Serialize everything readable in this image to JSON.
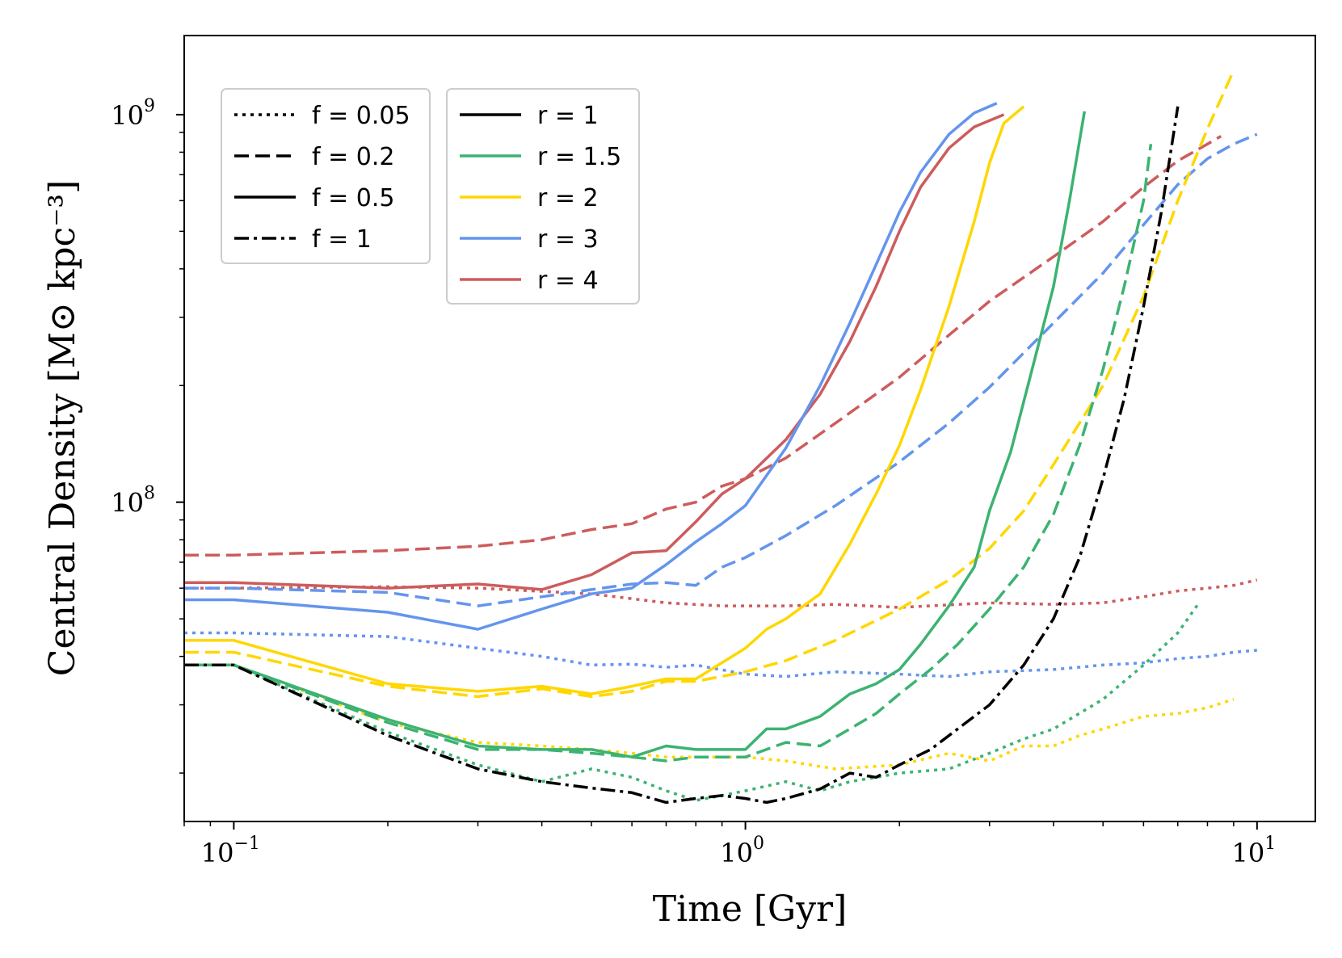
{
  "chart_data": {
    "type": "line",
    "title": "",
    "xlabel": "Time [Gyr]",
    "ylabel": "Central Density [M⊙ kpc⁻³]",
    "xscale": "log",
    "yscale": "log",
    "xlim": [
      0.08,
      13
    ],
    "ylim": [
      15000000.0,
      1600000000.0
    ],
    "xticks": [
      {
        "value": 0.1,
        "mant": "10",
        "exp": "−1"
      },
      {
        "value": 1,
        "mant": "10",
        "exp": "0"
      },
      {
        "value": 10,
        "mant": "10",
        "exp": "1"
      }
    ],
    "yticks": [
      {
        "value": 100000000.0,
        "mant": "10",
        "exp": "8"
      },
      {
        "value": 1000000000.0,
        "mant": "10",
        "exp": "9"
      }
    ],
    "legend_f": {
      "placement": "top-left",
      "entries": [
        {
          "label": "f = 0.05",
          "style": "dotted"
        },
        {
          "label": "f = 0.2",
          "style": "dashed"
        },
        {
          "label": "f = 0.5",
          "style": "solid"
        },
        {
          "label": "f = 1",
          "style": "dashdot"
        }
      ]
    },
    "legend_r": {
      "placement": "top-left",
      "entries": [
        {
          "label": "r = 1",
          "color": "#000000"
        },
        {
          "label": "r = 1.5",
          "color": "#3cb371"
        },
        {
          "label": "r = 2",
          "color": "#ffd700"
        },
        {
          "label": "r = 3",
          "color": "#6495ed"
        },
        {
          "label": "r = 4",
          "color": "#cd5c5c"
        }
      ]
    },
    "series": [
      {
        "name": "r=4 f=0.5",
        "color": "#cd5c5c",
        "style": "solid",
        "x": [
          0.08,
          0.1,
          0.2,
          0.3,
          0.4,
          0.5,
          0.6,
          0.7,
          0.8,
          0.9,
          1.0,
          1.2,
          1.4,
          1.6,
          1.8,
          2.0,
          2.2,
          2.5,
          2.8,
          3.2
        ],
        "y": [
          62000000.0,
          62000000.0,
          60000000.0,
          61500000.0,
          59500000.0,
          65000000.0,
          74000000.0,
          75000000.0,
          89000000.0,
          105000000.0,
          115000000.0,
          145000000.0,
          190000000.0,
          260000000.0,
          360000000.0,
          500000000.0,
          650000000.0,
          820000000.0,
          930000000.0,
          1000000000.0
        ]
      },
      {
        "name": "r=4 f=0.2",
        "color": "#cd5c5c",
        "style": "dashed",
        "x": [
          0.08,
          0.1,
          0.2,
          0.3,
          0.4,
          0.5,
          0.6,
          0.7,
          0.8,
          0.9,
          1.0,
          1.2,
          1.5,
          2.0,
          2.5,
          3.0,
          4.0,
          5.0,
          6.0,
          7.0,
          8.0,
          8.5
        ],
        "y": [
          73000000.0,
          73000000.0,
          75000000.0,
          77000000.0,
          80000000.0,
          85000000.0,
          88000000.0,
          96000000.0,
          100000000.0,
          110000000.0,
          115000000.0,
          130000000.0,
          160000000.0,
          210000000.0,
          270000000.0,
          330000000.0,
          430000000.0,
          530000000.0,
          650000000.0,
          760000000.0,
          840000000.0,
          880000000.0
        ]
      },
      {
        "name": "r=4 f=0.05",
        "color": "#cd5c5c",
        "style": "dotted",
        "x": [
          0.08,
          0.1,
          0.2,
          0.3,
          0.5,
          0.7,
          0.9,
          1.2,
          1.5,
          2.0,
          3.0,
          4.0,
          5.0,
          6.0,
          7.0,
          8.0,
          9.0,
          10.0
        ],
        "y": [
          60000000.0,
          60000000.0,
          60500000.0,
          60000000.0,
          58000000.0,
          55000000.0,
          54000000.0,
          54000000.0,
          54500000.0,
          53500000.0,
          55000000.0,
          54500000.0,
          55000000.0,
          57000000.0,
          59000000.0,
          60000000.0,
          61000000.0,
          63000000.0
        ]
      },
      {
        "name": "r=3 f=0.5",
        "color": "#6495ed",
        "style": "solid",
        "x": [
          0.08,
          0.1,
          0.2,
          0.3,
          0.4,
          0.5,
          0.6,
          0.7,
          0.8,
          0.9,
          1.0,
          1.2,
          1.4,
          1.6,
          1.8,
          2.0,
          2.2,
          2.5,
          2.8,
          3.1
        ],
        "y": [
          56000000.0,
          56000000.0,
          52000000.0,
          47000000.0,
          53000000.0,
          58000000.0,
          60000000.0,
          69000000.0,
          79000000.0,
          88000000.0,
          98000000.0,
          138000000.0,
          200000000.0,
          290000000.0,
          410000000.0,
          560000000.0,
          710000000.0,
          890000000.0,
          1010000000.0,
          1070000000.0
        ]
      },
      {
        "name": "r=3 f=0.2",
        "color": "#6495ed",
        "style": "dashed",
        "x": [
          0.08,
          0.1,
          0.2,
          0.3,
          0.4,
          0.5,
          0.6,
          0.7,
          0.8,
          0.9,
          1.0,
          1.2,
          1.5,
          2.0,
          2.5,
          3.0,
          4.0,
          5.0,
          6.0,
          7.0,
          8.0,
          9.0,
          10.0
        ],
        "y": [
          60000000.0,
          60000000.0,
          58500000.0,
          54000000.0,
          57000000.0,
          59500000.0,
          61500000.0,
          62000000.0,
          61000000.0,
          68000000.0,
          72000000.0,
          82000000.0,
          98000000.0,
          127000000.0,
          160000000.0,
          198000000.0,
          290000000.0,
          390000000.0,
          520000000.0,
          660000000.0,
          770000000.0,
          840000000.0,
          890000000.0
        ]
      },
      {
        "name": "r=3 f=0.05",
        "color": "#6495ed",
        "style": "dotted",
        "x": [
          0.08,
          0.1,
          0.2,
          0.3,
          0.4,
          0.5,
          0.6,
          0.7,
          0.8,
          1.0,
          1.2,
          1.5,
          2.0,
          2.5,
          3.0,
          4.0,
          5.0,
          6.0,
          7.0,
          8.0,
          9.0,
          10.0
        ],
        "y": [
          46000000.0,
          46000000.0,
          45000000.0,
          42000000.0,
          40000000.0,
          38000000.0,
          38200000.0,
          37500000.0,
          38000000.0,
          36000000.0,
          35500000.0,
          36500000.0,
          36000000.0,
          35500000.0,
          36500000.0,
          37000000.0,
          38000000.0,
          38500000.0,
          39500000.0,
          40000000.0,
          41000000.0,
          41500000.0
        ]
      },
      {
        "name": "r=2 f=0.5",
        "color": "#ffd700",
        "style": "solid",
        "x": [
          0.08,
          0.1,
          0.2,
          0.3,
          0.4,
          0.5,
          0.6,
          0.7,
          0.8,
          1.0,
          1.1,
          1.2,
          1.4,
          1.6,
          1.8,
          2.0,
          2.2,
          2.5,
          2.8,
          3.0,
          3.2,
          3.5
        ],
        "y": [
          44000000.0,
          44000000.0,
          34000000.0,
          32500000.0,
          33500000.0,
          32000000.0,
          33500000.0,
          35000000.0,
          35000000.0,
          42000000.0,
          47000000.0,
          50000000.0,
          58000000.0,
          78000000.0,
          105000000.0,
          140000000.0,
          195000000.0,
          320000000.0,
          530000000.0,
          750000000.0,
          950000000.0,
          1050000000.0
        ]
      },
      {
        "name": "r=2 f=0.2",
        "color": "#ffd700",
        "style": "dashed",
        "x": [
          0.08,
          0.1,
          0.2,
          0.3,
          0.4,
          0.5,
          0.6,
          0.7,
          0.8,
          1.0,
          1.2,
          1.5,
          2.0,
          2.5,
          3.0,
          3.5,
          4.0,
          5.0,
          6.0,
          7.0,
          8.0,
          9.0
        ],
        "y": [
          41000000.0,
          41000000.0,
          33500000.0,
          31500000.0,
          33000000.0,
          31500000.0,
          32500000.0,
          34500000.0,
          34500000.0,
          36500000.0,
          39000000.0,
          44000000.0,
          53000000.0,
          63000000.0,
          76000000.0,
          95000000.0,
          125000000.0,
          200000000.0,
          340000000.0,
          600000000.0,
          920000000.0,
          1300000000.0
        ]
      },
      {
        "name": "r=2 f=0.05",
        "color": "#ffd700",
        "style": "dotted",
        "x": [
          0.08,
          0.1,
          0.2,
          0.3,
          0.4,
          0.5,
          0.6,
          0.7,
          0.8,
          0.9,
          1.0,
          1.2,
          1.5,
          2.0,
          2.5,
          3.0,
          3.5,
          4.0,
          4.5,
          5.0,
          6.0,
          7.0,
          8.0,
          9.0
        ],
        "y": [
          38000000.0,
          38000000.0,
          27000000.0,
          24000000.0,
          23500000.0,
          23000000.0,
          22500000.0,
          22000000.0,
          22000000.0,
          22000000.0,
          22000000.0,
          21500000.0,
          20500000.0,
          21000000.0,
          22500000.0,
          21500000.0,
          23500000.0,
          23500000.0,
          25000000.0,
          26000000.0,
          28000000.0,
          28500000.0,
          29500000.0,
          31000000.0
        ]
      },
      {
        "name": "r=1.5 f=0.5",
        "color": "#3cb371",
        "style": "solid",
        "x": [
          0.08,
          0.1,
          0.2,
          0.3,
          0.4,
          0.5,
          0.6,
          0.7,
          0.8,
          0.9,
          1.0,
          1.1,
          1.2,
          1.4,
          1.6,
          1.8,
          2.0,
          2.2,
          2.5,
          2.8,
          3.0,
          3.3,
          3.6,
          4.0,
          4.3,
          4.6
        ],
        "y": [
          38000000.0,
          38000000.0,
          27500000.0,
          23500000.0,
          23000000.0,
          23000000.0,
          22000000.0,
          23500000.0,
          23000000.0,
          23000000.0,
          23000000.0,
          26000000.0,
          26000000.0,
          28000000.0,
          32000000.0,
          34000000.0,
          37000000.0,
          43000000.0,
          54000000.0,
          68000000.0,
          95000000.0,
          135000000.0,
          210000000.0,
          360000000.0,
          600000000.0,
          1020000000.0
        ]
      },
      {
        "name": "r=1.5 f=0.2",
        "color": "#3cb371",
        "style": "dashed",
        "x": [
          0.08,
          0.1,
          0.2,
          0.3,
          0.4,
          0.5,
          0.6,
          0.7,
          0.8,
          0.9,
          1.0,
          1.2,
          1.4,
          1.6,
          1.8,
          2.0,
          2.3,
          2.6,
          3.0,
          3.5,
          4.0,
          4.5,
          5.0,
          5.5,
          6.0,
          6.2
        ],
        "y": [
          38000000.0,
          38000000.0,
          27000000.0,
          23000000.0,
          23000000.0,
          22500000.0,
          22000000.0,
          21500000.0,
          22000000.0,
          22000000.0,
          22000000.0,
          24000000.0,
          23500000.0,
          26000000.0,
          28500000.0,
          32000000.0,
          37000000.0,
          43000000.0,
          53000000.0,
          68000000.0,
          93000000.0,
          140000000.0,
          220000000.0,
          360000000.0,
          600000000.0,
          840000000.0
        ]
      },
      {
        "name": "r=1.5 f=0.05",
        "color": "#3cb371",
        "style": "dotted",
        "x": [
          0.08,
          0.1,
          0.2,
          0.3,
          0.4,
          0.5,
          0.6,
          0.7,
          0.8,
          0.9,
          1.0,
          1.2,
          1.4,
          1.6,
          1.8,
          2.0,
          2.5,
          3.0,
          3.5,
          4.0,
          5.0,
          6.0,
          7.0,
          7.7
        ],
        "y": [
          38000000.0,
          38000000.0,
          25500000.0,
          21000000.0,
          19000000.0,
          20500000.0,
          19500000.0,
          18000000.0,
          17000000.0,
          17500000.0,
          18000000.0,
          19000000.0,
          18000000.0,
          19000000.0,
          19500000.0,
          20000000.0,
          20500000.0,
          22500000.0,
          24500000.0,
          26000000.0,
          31000000.0,
          38000000.0,
          46000000.0,
          55000000.0
        ]
      },
      {
        "name": "r=1 f=1",
        "color": "#000000",
        "style": "dashdot",
        "x": [
          0.08,
          0.1,
          0.2,
          0.3,
          0.4,
          0.5,
          0.6,
          0.7,
          0.8,
          0.9,
          1.0,
          1.1,
          1.2,
          1.4,
          1.6,
          1.8,
          2.0,
          2.3,
          2.6,
          3.0,
          3.5,
          4.0,
          4.5,
          5.0,
          5.5,
          6.0,
          6.5,
          7.0
        ],
        "y": [
          38000000.0,
          38000000.0,
          25000000.0,
          20500000.0,
          19000000.0,
          18300000.0,
          17800000.0,
          16800000.0,
          17200000.0,
          17500000.0,
          17200000.0,
          16800000.0,
          17200000.0,
          18200000.0,
          20000000.0,
          19500000.0,
          21000000.0,
          23000000.0,
          26000000.0,
          30000000.0,
          38000000.0,
          50000000.0,
          72000000.0,
          115000000.0,
          185000000.0,
          320000000.0,
          560000000.0,
          1050000000.0
        ]
      }
    ]
  }
}
